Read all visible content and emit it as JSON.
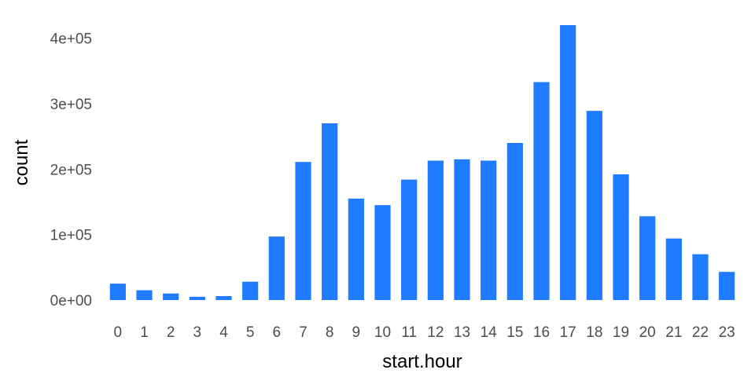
{
  "chart_data": {
    "type": "bar",
    "title": "",
    "xlabel": "start.hour",
    "ylabel": "count",
    "categories": [
      "0",
      "1",
      "2",
      "3",
      "4",
      "5",
      "6",
      "7",
      "8",
      "9",
      "10",
      "11",
      "12",
      "13",
      "14",
      "15",
      "16",
      "17",
      "18",
      "19",
      "20",
      "21",
      "22",
      "23"
    ],
    "values": [
      25000,
      15000,
      10000,
      5000,
      6000,
      28000,
      97000,
      211000,
      270000,
      155000,
      145000,
      184000,
      213000,
      215000,
      213000,
      240000,
      333000,
      420000,
      289000,
      192000,
      128000,
      94000,
      70000,
      43000
    ],
    "ylim": [
      0,
      420000
    ],
    "yticks": [
      {
        "value": 0,
        "label": "0e+00"
      },
      {
        "value": 100000,
        "label": "1e+05"
      },
      {
        "value": 200000,
        "label": "2e+05"
      },
      {
        "value": 300000,
        "label": "3e+05"
      },
      {
        "value": 400000,
        "label": "4e+05"
      }
    ],
    "bar_color": "#1f7bff",
    "grid": false,
    "legend": "none"
  }
}
